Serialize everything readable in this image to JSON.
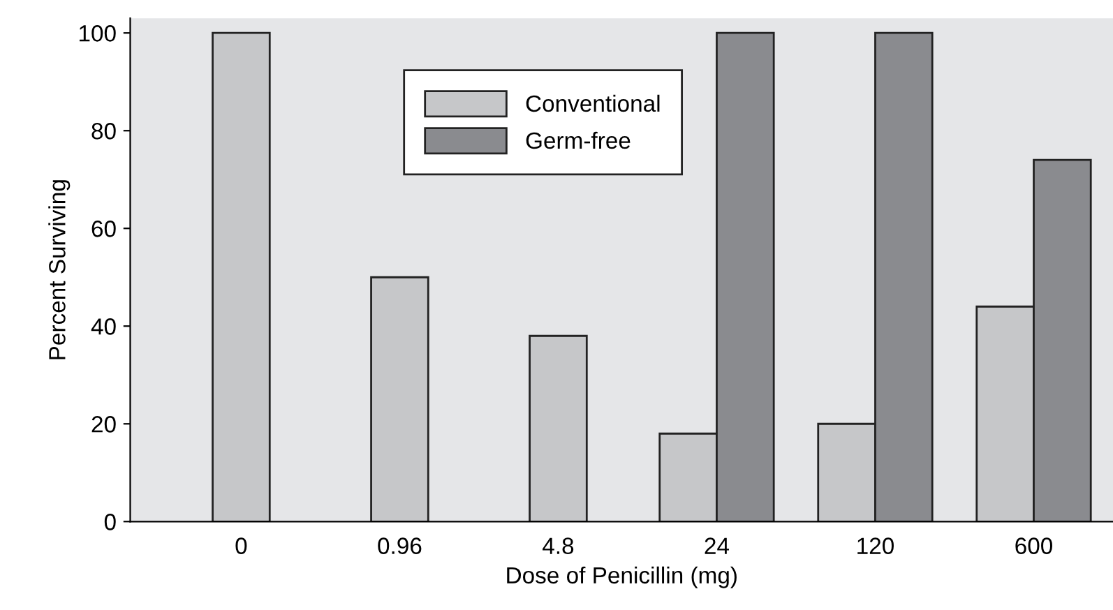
{
  "chart_data": {
    "type": "bar",
    "xlabel": "Dose of Penicillin (mg)",
    "ylabel": "Percent Surviving",
    "categories": [
      "0",
      "0.96",
      "4.8",
      "24",
      "120",
      "600"
    ],
    "series": [
      {
        "name": "Conventional",
        "color": "#c6c7c9",
        "values": [
          100,
          50,
          38,
          18,
          20,
          44
        ]
      },
      {
        "name": "Germ-free",
        "color": "#8a8b8f",
        "values": [
          null,
          null,
          null,
          100,
          100,
          74
        ]
      }
    ],
    "ylim": [
      0,
      103
    ],
    "yticks": [
      0,
      20,
      40,
      60,
      80,
      100
    ],
    "grid": false,
    "legend": "top"
  }
}
